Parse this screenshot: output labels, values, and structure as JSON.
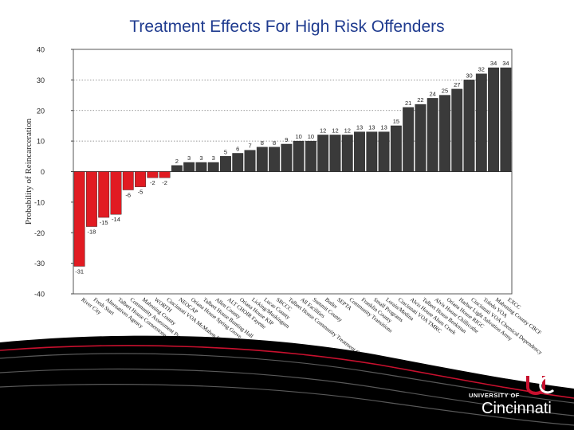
{
  "chart_data": {
    "type": "bar",
    "title": "Treatment Effects For High Risk Offenders",
    "xlabel": "",
    "ylabel": "Probability of Reincarceration",
    "ylim": [
      -40,
      40
    ],
    "yticks": [
      40,
      30,
      20,
      10,
      0,
      -10,
      -20,
      -30,
      -40
    ],
    "yticks_labels": [
      "40",
      "30",
      "20",
      "10",
      "0",
      "-10",
      "-20",
      "-30",
      "-40"
    ],
    "gridlines": [
      10,
      20,
      30
    ],
    "negative_color": "#e11b22",
    "positive_color": "#3a3a3a",
    "categories": [
      "River City",
      "Fresh Start",
      "Alternatives Agency",
      "Talbert House Cornerstone",
      "Community Assessment Program (Men's)",
      "Mahoning County",
      "WORTH",
      "Cincinnati VOA McMahon Hall",
      "NEOCAP",
      "Oriana House Spring Grove",
      "Talbert House Bunting Hall",
      "Allen County",
      "ALT CHOIR Fayette",
      "Oriana House KIP",
      "Licking/Muskingum",
      "Lucas County",
      "SRCCC",
      "Talbert House Community Treatment Center",
      "All Facilities",
      "Summit County",
      "Butler",
      "SEPTA",
      "Community Transitions",
      "Franklin County",
      "Small Programs",
      "Lorain/Medina",
      "Cincinnati VOA TMRC",
      "Alvis House Alum Creek",
      "Talbert House Beekman",
      "Alvis House Chillicothe",
      "Oriana House RIGC",
      "Harbor Light Salvation Army",
      "Cincinnati VOA Chemical Dependency",
      "Toledo VOA",
      "Mahoning County CBCF",
      "EXCC"
    ],
    "values": [
      -31,
      -18,
      -15,
      -14,
      -6,
      -5,
      -2,
      -2,
      2,
      3,
      3,
      3,
      5,
      6,
      7,
      8,
      8,
      9,
      10,
      10,
      12,
      12,
      12,
      13,
      13,
      13,
      15,
      21,
      22,
      24,
      25,
      27,
      30,
      32,
      34,
      34
    ],
    "data_labels": [
      "-31",
      "-18",
      "-15",
      "-14",
      "-6",
      "-5",
      "-2",
      "-2",
      "2",
      "3",
      "3",
      "3",
      "5",
      "6",
      "7",
      "8",
      "8",
      "9",
      "10",
      "10",
      "12",
      "12",
      "12",
      "13",
      "13",
      "13",
      "15",
      "21",
      "22",
      "24",
      "25",
      "27",
      "30",
      "32",
      "34",
      "34"
    ]
  },
  "branding": {
    "logo_mark": "UC",
    "university_of": "UNIVERSITY OF",
    "cincinnati": "Cincinnati",
    "brand_red": "#c8102e"
  }
}
